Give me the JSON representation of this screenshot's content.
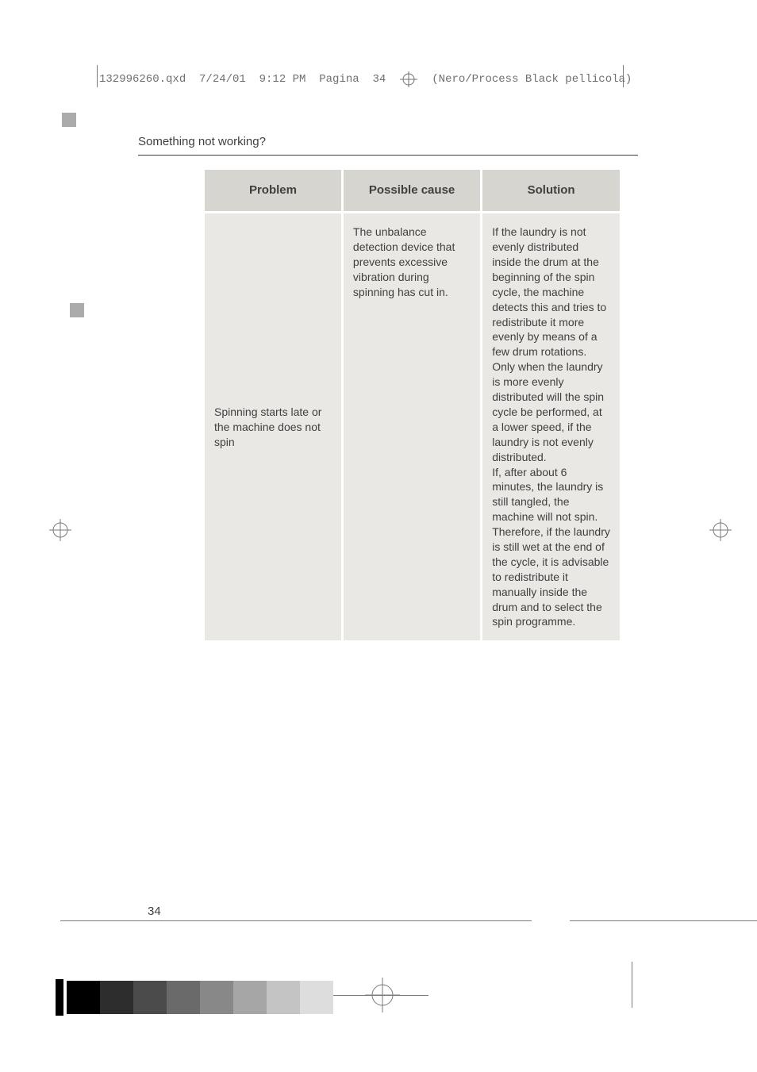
{
  "slug": {
    "left": "132996260.qxd  7/24/01  9:12 PM  Pagina  34",
    "right": "(Nero/Process Black pellicola)"
  },
  "section_heading": "Something not working?",
  "table": {
    "headers": {
      "problem": "Problem",
      "cause": "Possible cause",
      "solution": "Solution"
    },
    "row": {
      "problem": "Spinning starts late or the machine does not spin",
      "cause": "The unbalance detection device that prevents excessive vibration during spinning has cut in.",
      "solution": "If the laundry is not evenly distributed inside the drum at the beginning of the spin cycle, the machine detects this and tries to redistribute it more evenly by means of a few drum rotations.\nOnly when the laundry is more evenly distributed will the spin cycle be performed, at a lower speed, if the laundry is not evenly distributed.\nIf, after about 6 minutes, the laundry is still tangled, the machine will not spin. Therefore, if the laundry is still wet at the end of the cycle, it is advisable to redistribute it manually inside the drum and to select the spin programme."
    }
  },
  "page_number": "34",
  "swatch_colors": [
    "#000000",
    "#2d2d2d",
    "#4b4b4b",
    "#6a6a6a",
    "#888888",
    "#a6a6a6",
    "#c4c4c4",
    "#dddddd"
  ]
}
